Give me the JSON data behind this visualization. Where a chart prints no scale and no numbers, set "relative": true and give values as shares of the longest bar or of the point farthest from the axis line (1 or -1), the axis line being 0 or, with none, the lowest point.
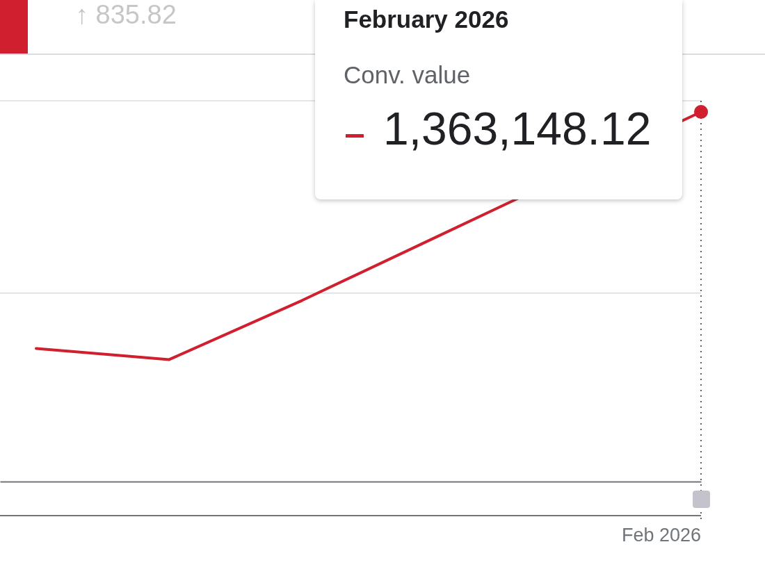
{
  "chart_data": {
    "type": "line",
    "categories": [
      null,
      null,
      null,
      null,
      null,
      null
    ],
    "relative": true,
    "series": [
      {
        "name": "Conv. value",
        "color": "#d01f2f",
        "values": [
          0.36,
          0.33,
          0.49,
          0.66,
          null,
          1
        ]
      }
    ],
    "ref_lines": [
      {
        "axis": "y",
        "value": 0.51,
        "color": "#dadce0"
      },
      {
        "axis": "y",
        "value": 1.03,
        "color": "#dadce0"
      }
    ],
    "annotations": [
      "↑ 835.82",
      "February 2026",
      "1,363,148.12",
      "Feb 2026"
    ]
  }
}
